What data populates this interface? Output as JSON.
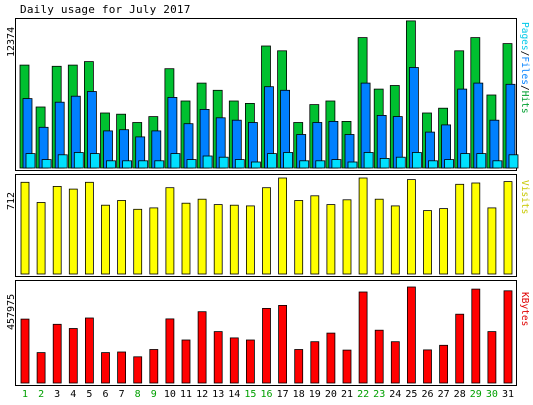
{
  "title": "Daily usage for July 2017",
  "colors": {
    "hits": "#00c030",
    "files": "#0080ff",
    "pages": "#00e0ff",
    "visits": "#ffff00",
    "kbytes": "#ff0000",
    "weekend_day": "#00a000",
    "weekday": "#000000"
  },
  "panels": {
    "top": {
      "ymax": "12374",
      "labels": [
        "Pages",
        "/",
        "Files",
        "/",
        "Hits"
      ]
    },
    "middle": {
      "ymax": "712",
      "label": "Visits"
    },
    "bottom": {
      "ymax": "457975",
      "label": "KBytes"
    }
  },
  "chart_data": [
    {
      "type": "bar",
      "title": "Daily usage for July 2017",
      "categories": [
        "1",
        "2",
        "3",
        "4",
        "5",
        "6",
        "7",
        "8",
        "9",
        "10",
        "11",
        "12",
        "13",
        "14",
        "15",
        "16",
        "17",
        "18",
        "19",
        "20",
        "21",
        "22",
        "23",
        "24",
        "25",
        "26",
        "27",
        "28",
        "29",
        "30",
        "31"
      ],
      "weekend_days": [
        "1",
        "2",
        "8",
        "9",
        "15",
        "16",
        "22",
        "23",
        "29",
        "30"
      ],
      "ylim": [
        0,
        12374
      ],
      "ylabel": "Pages/Files/Hits",
      "series": [
        {
          "name": "Hits",
          "values": [
            8600,
            5100,
            8500,
            8600,
            8900,
            4600,
            4500,
            3800,
            4300,
            8300,
            5600,
            7100,
            6500,
            5600,
            5400,
            10200,
            9800,
            3800,
            5300,
            5600,
            3900,
            10900,
            6600,
            6900,
            12300,
            4600,
            5000,
            9800,
            10900,
            6100,
            10400
          ]
        },
        {
          "name": "Files",
          "values": [
            5800,
            3400,
            5500,
            6000,
            6400,
            3100,
            3200,
            2600,
            3100,
            5900,
            3700,
            4900,
            4200,
            4000,
            3800,
            6800,
            6500,
            2800,
            3800,
            3900,
            2800,
            7100,
            4400,
            4300,
            8400,
            3000,
            3600,
            6600,
            7100,
            4000,
            7000
          ]
        },
        {
          "name": "Pages",
          "values": [
            1200,
            700,
            1100,
            1300,
            1200,
            600,
            600,
            600,
            600,
            1200,
            700,
            1000,
            900,
            700,
            500,
            1200,
            1300,
            600,
            600,
            700,
            500,
            1300,
            800,
            900,
            1300,
            600,
            700,
            1200,
            1200,
            600,
            1100
          ]
        }
      ]
    },
    {
      "type": "bar",
      "ylim": [
        0,
        712
      ],
      "ylabel": "Visits",
      "series": [
        {
          "name": "Visits",
          "values": [
            680,
            530,
            650,
            630,
            680,
            510,
            545,
            480,
            490,
            640,
            525,
            555,
            515,
            510,
            505,
            640,
            712,
            545,
            580,
            515,
            550,
            712,
            555,
            505,
            700,
            470,
            485,
            665,
            675,
            490,
            685
          ]
        }
      ]
    },
    {
      "type": "bar",
      "ylim": [
        0,
        457975
      ],
      "ylabel": "KBytes",
      "series": [
        {
          "name": "KBytes",
          "values": [
            305000,
            145000,
            280000,
            260000,
            310000,
            145000,
            148000,
            125000,
            160000,
            306000,
            205000,
            340000,
            245000,
            215000,
            205000,
            356000,
            370000,
            160000,
            197000,
            238000,
            157000,
            434000,
            252000,
            197000,
            458000,
            158000,
            180000,
            328000,
            448000,
            245000,
            440000
          ]
        }
      ]
    }
  ]
}
